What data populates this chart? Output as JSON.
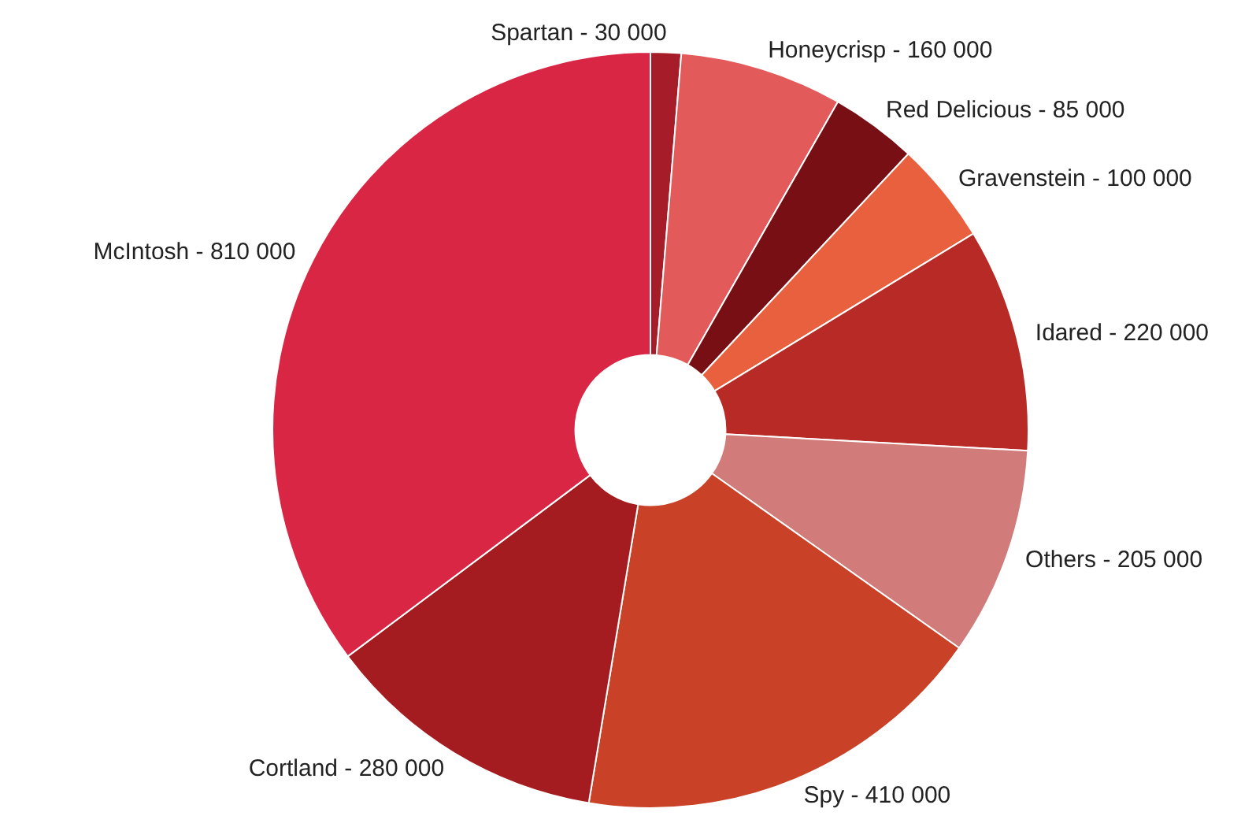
{
  "chart_data": {
    "type": "donut",
    "categories": [
      "Spartan",
      "Honeycrisp",
      "Red Delicious",
      "Gravenstein",
      "Idared",
      "Others",
      "Spy",
      "Cortland",
      "McIntosh"
    ],
    "values": [
      30000,
      160000,
      85000,
      100000,
      220000,
      205000,
      410000,
      280000,
      810000
    ],
    "value_labels": [
      "30 000",
      "160 000",
      "85 000",
      "100 000",
      "220 000",
      "205 000",
      "410 000",
      "280 000",
      "810 000"
    ],
    "colors": [
      "#a61c28",
      "#e35a5a",
      "#780f14",
      "#e8603e",
      "#b82a25",
      "#d17b7b",
      "#c94227",
      "#a51c20",
      "#d92645"
    ],
    "legend": false
  }
}
